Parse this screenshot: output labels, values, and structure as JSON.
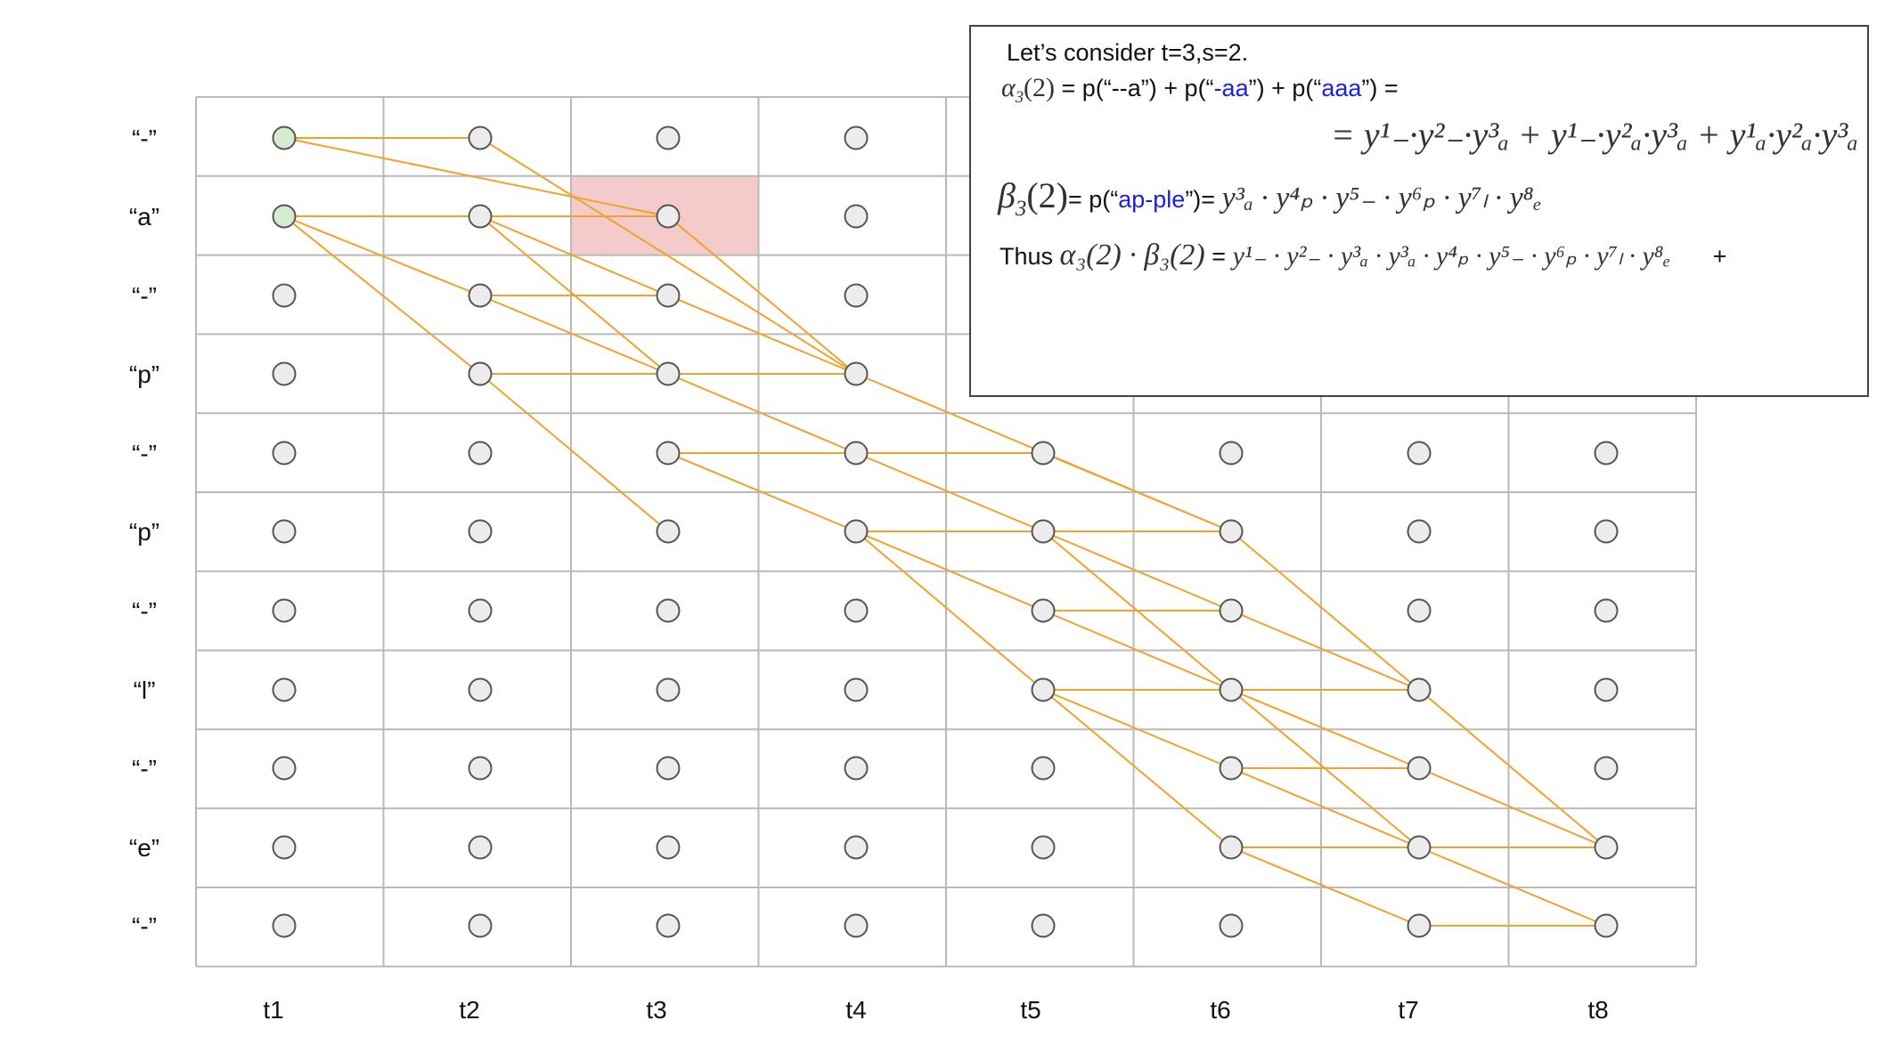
{
  "row_labels": [
    "“-”",
    "“a”",
    "“-”",
    "“p”",
    "“-”",
    "“p”",
    "“-”",
    "“l”",
    "“-”",
    "“e”",
    "“-”"
  ],
  "col_labels": [
    "t1",
    "t2",
    "t3",
    "t4",
    "t5",
    "t6",
    "t7",
    "t8"
  ],
  "colors": {
    "edge": "#f0a22a",
    "grid": "#b9b9b9",
    "node_fill": "#ececec",
    "node_stroke": "#555555",
    "start_node_fill": "#d6ecd0",
    "highlight_cell": "#f4caca",
    "blue_text": "#1a22d8"
  },
  "start_nodes": [
    [
      1,
      1
    ],
    [
      1,
      2
    ]
  ],
  "highlight_cell": [
    3,
    2
  ],
  "edges": [
    [
      1,
      1,
      2,
      1
    ],
    [
      1,
      1,
      3,
      2
    ],
    [
      2,
      1,
      4,
      4
    ],
    [
      1,
      2,
      2,
      2
    ],
    [
      1,
      2,
      2,
      3
    ],
    [
      1,
      2,
      2,
      4
    ],
    [
      2,
      2,
      3,
      2
    ],
    [
      2,
      2,
      3,
      3
    ],
    [
      2,
      2,
      3,
      4
    ],
    [
      2,
      3,
      3,
      3
    ],
    [
      2,
      3,
      3,
      4
    ],
    [
      2,
      4,
      3,
      4
    ],
    [
      2,
      4,
      3,
      6
    ],
    [
      3,
      3,
      4,
      4
    ],
    [
      3,
      4,
      4,
      4
    ],
    [
      3,
      2,
      4,
      4
    ],
    [
      3,
      4,
      4,
      5
    ],
    [
      4,
      4,
      6,
      6
    ],
    [
      3,
      5,
      4,
      5
    ],
    [
      3,
      5,
      4,
      6
    ],
    [
      4,
      5,
      5,
      5
    ],
    [
      4,
      5,
      5,
      6
    ],
    [
      4,
      6,
      5,
      6
    ],
    [
      4,
      6,
      5,
      7
    ],
    [
      4,
      6,
      5,
      8
    ],
    [
      5,
      5,
      6,
      6
    ],
    [
      5,
      6,
      6,
      6
    ],
    [
      5,
      6,
      6,
      7
    ],
    [
      5,
      6,
      6,
      8
    ],
    [
      5,
      7,
      6,
      7
    ],
    [
      5,
      7,
      6,
      8
    ],
    [
      5,
      8,
      6,
      8
    ],
    [
      5,
      8,
      6,
      9
    ],
    [
      5,
      8,
      6,
      10
    ],
    [
      6,
      6,
      7,
      8
    ],
    [
      6,
      7,
      7,
      8
    ],
    [
      6,
      8,
      7,
      8
    ],
    [
      6,
      8,
      7,
      9
    ],
    [
      6,
      8,
      7,
      10
    ],
    [
      6,
      9,
      7,
      9
    ],
    [
      6,
      9,
      7,
      10
    ],
    [
      6,
      10,
      7,
      10
    ],
    [
      6,
      10,
      7,
      11
    ],
    [
      7,
      8,
      8,
      10
    ],
    [
      7,
      9,
      8,
      10
    ],
    [
      7,
      10,
      8,
      10
    ],
    [
      7,
      10,
      8,
      11
    ],
    [
      7,
      11,
      8,
      11
    ]
  ],
  "formula": {
    "line1": "Let’s consider t=3,s=2.",
    "alpha_label": "α",
    "alpha_sub": "3",
    "alpha_arg": "(2)",
    "alpha_eq_prefix": " = p(“--a”) + p(“",
    "alpha_term2": "-aa",
    "alpha_mid": "”) + p(“",
    "alpha_term3": "aaa",
    "alpha_suffix": "”) =",
    "alpha_expansion": "= y¹₋·y²₋·y³ₐ + y¹₋·y²ₐ·y³ₐ + y¹ₐ·y²ₐ·y³ₐ",
    "beta_label": "β",
    "beta_sub": "3",
    "beta_arg": "(2)",
    "beta_prefix": "= p(“",
    "beta_term": "ap-ple",
    "beta_suffix": "”)=",
    "beta_expansion": "y³ₐ · y⁴ₚ · y⁵₋ · y⁶ₚ · y⁷ₗ · y⁸ₑ",
    "thus_label": "Thus",
    "thus_product": "α₃(2) · β₃(2)",
    "thus_eq": "=",
    "thus_expansion": "y¹₋ · y²₋ · y³ₐ · y³ₐ · y⁴ₚ · y⁵₋ · y⁶ₚ · y⁷ₗ · y⁸ₑ",
    "thus_plus": "+"
  }
}
